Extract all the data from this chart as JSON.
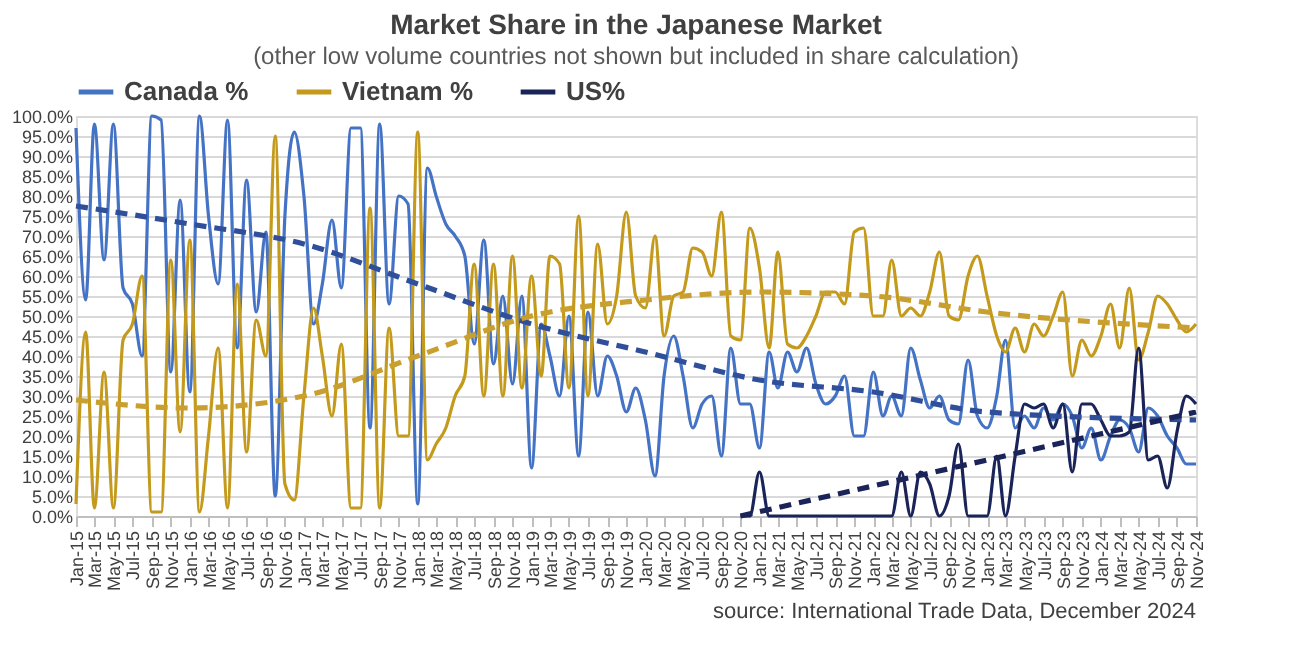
{
  "chart_data": {
    "type": "line",
    "title": "Market Share in the Japanese Market",
    "subtitle": "(other low volume countries not shown but included in share calculation)",
    "x": [
      "2015-01",
      "2015-02",
      "2015-03",
      "2015-04",
      "2015-05",
      "2015-06",
      "2015-07",
      "2015-08",
      "2015-09",
      "2015-10",
      "2015-11",
      "2015-12",
      "2016-01",
      "2016-02",
      "2016-03",
      "2016-04",
      "2016-05",
      "2016-06",
      "2016-07",
      "2016-08",
      "2016-09",
      "2016-10",
      "2016-11",
      "2016-12",
      "2017-01",
      "2017-02",
      "2017-03",
      "2017-04",
      "2017-05",
      "2017-06",
      "2017-07",
      "2017-08",
      "2017-09",
      "2017-10",
      "2017-11",
      "2017-12",
      "2018-01",
      "2018-02",
      "2018-03",
      "2018-04",
      "2018-05",
      "2018-06",
      "2018-07",
      "2018-08",
      "2018-09",
      "2018-10",
      "2018-11",
      "2018-12",
      "2019-01",
      "2019-02",
      "2019-03",
      "2019-04",
      "2019-05",
      "2019-06",
      "2019-07",
      "2019-08",
      "2019-09",
      "2019-10",
      "2019-11",
      "2019-12",
      "2020-01",
      "2020-02",
      "2020-03",
      "2020-04",
      "2020-05",
      "2020-06",
      "2020-07",
      "2020-08",
      "2020-09",
      "2020-10",
      "2020-11",
      "2020-12",
      "2021-01",
      "2021-02",
      "2021-03",
      "2021-04",
      "2021-05",
      "2021-06",
      "2021-07",
      "2021-08",
      "2021-09",
      "2021-10",
      "2021-11",
      "2021-12",
      "2022-01",
      "2022-02",
      "2022-03",
      "2022-04",
      "2022-05",
      "2022-06",
      "2022-07",
      "2022-08",
      "2022-09",
      "2022-10",
      "2022-11",
      "2022-12",
      "2023-01",
      "2023-02",
      "2023-03",
      "2023-04",
      "2023-05",
      "2023-06",
      "2023-07",
      "2023-08",
      "2023-09",
      "2023-10",
      "2023-11",
      "2023-12",
      "2024-01",
      "2024-02",
      "2024-03",
      "2024-04",
      "2024-05",
      "2024-06",
      "2024-07",
      "2024-08",
      "2024-09",
      "2024-10",
      "2024-11"
    ],
    "series": [
      {
        "name": "Canada %",
        "color": "#4472c4",
        "line_style": "solid",
        "values": [
          97,
          54,
          98,
          64,
          98,
          57,
          53,
          40,
          100,
          99,
          36,
          79,
          31,
          100,
          75,
          58,
          99,
          42,
          84,
          51,
          71,
          5,
          75,
          96,
          80,
          48,
          58,
          74,
          57,
          97,
          97,
          22,
          98,
          53,
          80,
          78,
          3,
          87,
          80,
          73,
          70,
          65,
          43,
          69,
          38,
          55,
          33,
          55,
          12,
          48,
          40,
          30,
          50,
          15,
          51,
          30,
          40,
          35,
          26,
          32,
          24,
          10,
          35,
          45,
          35,
          22,
          28,
          30,
          15,
          42,
          28,
          28,
          17,
          41,
          32,
          41,
          36,
          42,
          33,
          28,
          30,
          35,
          20,
          20,
          36,
          25,
          30,
          25,
          42,
          34,
          27,
          30,
          24,
          23,
          39,
          25,
          22,
          30,
          44,
          22,
          25,
          22,
          27,
          24,
          28,
          25,
          17,
          22,
          14,
          20,
          24,
          22,
          16,
          27,
          25,
          20,
          17,
          13,
          13
        ]
      },
      {
        "name": "Vietnam %",
        "color": "#c49a1c",
        "line_style": "solid",
        "values": [
          3,
          46,
          2,
          36,
          2,
          44,
          48,
          60,
          1,
          1,
          64,
          21,
          69,
          1,
          20,
          42,
          2,
          58,
          16,
          49,
          40,
          95,
          8,
          4,
          30,
          52,
          40,
          25,
          43,
          2,
          2,
          77,
          2,
          47,
          20,
          20,
          96,
          14,
          18,
          22,
          30,
          35,
          63,
          30,
          63,
          30,
          65,
          32,
          60,
          35,
          65,
          63,
          32,
          75,
          30,
          68,
          48,
          55,
          76,
          55,
          52,
          70,
          45,
          55,
          56,
          67,
          66,
          60,
          76,
          45,
          44,
          72,
          62,
          42,
          66,
          43,
          42,
          45,
          50,
          56,
          56,
          53,
          71,
          72,
          50,
          50,
          64,
          50,
          52,
          50,
          56,
          66,
          50,
          49,
          60,
          65,
          55,
          45,
          41,
          47,
          41,
          48,
          45,
          50,
          56,
          35,
          44,
          40,
          45,
          53,
          42,
          57,
          39,
          46,
          55,
          53,
          49,
          46,
          48
        ]
      },
      {
        "name": "US%",
        "color": "#1b2459",
        "line_style": "solid",
        "values": [
          null,
          null,
          null,
          null,
          null,
          null,
          null,
          null,
          null,
          null,
          null,
          null,
          null,
          null,
          null,
          null,
          null,
          null,
          null,
          null,
          null,
          null,
          null,
          null,
          null,
          null,
          null,
          null,
          null,
          null,
          null,
          null,
          null,
          null,
          null,
          null,
          null,
          null,
          null,
          null,
          null,
          null,
          null,
          null,
          null,
          null,
          null,
          null,
          null,
          null,
          null,
          null,
          null,
          null,
          null,
          null,
          null,
          null,
          null,
          null,
          null,
          null,
          null,
          null,
          null,
          null,
          null,
          null,
          null,
          null,
          0,
          0,
          11,
          0,
          0,
          0,
          0,
          0,
          0,
          0,
          0,
          0,
          0,
          0,
          0,
          0,
          0,
          11,
          0,
          11,
          8,
          0,
          5,
          18,
          0,
          0,
          0,
          15,
          0,
          15,
          28,
          27,
          28,
          22,
          28,
          11,
          28,
          28,
          24,
          20,
          20,
          21,
          42,
          14,
          15,
          7,
          21,
          30,
          28
        ]
      },
      {
        "type": "line",
        "color": "#2f4f9a",
        "line_style": "dashed",
        "x": [
          "2015-01",
          "2016-01",
          "2017-01",
          "2018-01",
          "2019-01",
          "2020-01",
          "2021-01",
          "2022-01",
          "2023-01",
          "2024-11"
        ],
        "values": [
          77.5,
          73,
          68,
          58,
          48,
          41,
          34,
          31,
          26,
          24
        ]
      },
      {
        "type": "line",
        "color": "#c9a030",
        "line_style": "dashed",
        "x": [
          "2015-01",
          "2016-01",
          "2017-01",
          "2018-01",
          "2019-01",
          "2020-01",
          "2021-01",
          "2022-01",
          "2023-01",
          "2024-11"
        ],
        "values": [
          29,
          27,
          30,
          40,
          50,
          54,
          56,
          55,
          51,
          47
        ]
      },
      {
        "type": "line",
        "color": "#1b2459",
        "line_style": "dashed",
        "x": [
          "2020-11",
          "2023-01",
          "2024-11"
        ],
        "values": [
          0,
          14,
          26
        ]
      }
    ],
    "xlim": [
      "2015-01",
      "2024-11"
    ],
    "xticks": [
      {
        "value": "2015-01",
        "label": "Jan-15"
      },
      {
        "value": "2015-03",
        "label": "Mar-15"
      },
      {
        "value": "2015-05",
        "label": "May-15"
      },
      {
        "value": "2015-07",
        "label": "Jul-15"
      },
      {
        "value": "2015-09",
        "label": "Sep-15"
      },
      {
        "value": "2015-11",
        "label": "Nov-15"
      },
      {
        "value": "2016-01",
        "label": "Jan-16"
      },
      {
        "value": "2016-03",
        "label": "Mar-16"
      },
      {
        "value": "2016-05",
        "label": "May-16"
      },
      {
        "value": "2016-07",
        "label": "Jul-16"
      },
      {
        "value": "2016-09",
        "label": "Sep-16"
      },
      {
        "value": "2016-11",
        "label": "Nov-16"
      },
      {
        "value": "2017-01",
        "label": "Jan-17"
      },
      {
        "value": "2017-03",
        "label": "Mar-17"
      },
      {
        "value": "2017-05",
        "label": "May-17"
      },
      {
        "value": "2017-07",
        "label": "Jul-17"
      },
      {
        "value": "2017-09",
        "label": "Sep-17"
      },
      {
        "value": "2017-11",
        "label": "Nov-17"
      },
      {
        "value": "2018-01",
        "label": "Jan-18"
      },
      {
        "value": "2018-03",
        "label": "Mar-18"
      },
      {
        "value": "2018-05",
        "label": "May-18"
      },
      {
        "value": "2018-07",
        "label": "Jul-18"
      },
      {
        "value": "2018-09",
        "label": "Sep-18"
      },
      {
        "value": "2018-11",
        "label": "Nov-18"
      },
      {
        "value": "2019-01",
        "label": "Jan-19"
      },
      {
        "value": "2019-03",
        "label": "Mar-19"
      },
      {
        "value": "2019-05",
        "label": "May-19"
      },
      {
        "value": "2019-07",
        "label": "Jul-19"
      },
      {
        "value": "2019-09",
        "label": "Sep-19"
      },
      {
        "value": "2019-11",
        "label": "Nov-19"
      },
      {
        "value": "2020-01",
        "label": "Jan-20"
      },
      {
        "value": "2020-03",
        "label": "Mar-20"
      },
      {
        "value": "2020-05",
        "label": "May-20"
      },
      {
        "value": "2020-07",
        "label": "Jul-20"
      },
      {
        "value": "2020-09",
        "label": "Sep-20"
      },
      {
        "value": "2020-11",
        "label": "Nov-20"
      },
      {
        "value": "2021-01",
        "label": "Jan-21"
      },
      {
        "value": "2021-03",
        "label": "Mar-21"
      },
      {
        "value": "2021-05",
        "label": "May-21"
      },
      {
        "value": "2021-07",
        "label": "Jul-21"
      },
      {
        "value": "2021-09",
        "label": "Sep-21"
      },
      {
        "value": "2021-11",
        "label": "Nov-21"
      },
      {
        "value": "2022-01",
        "label": "Jan-22"
      },
      {
        "value": "2022-03",
        "label": "Mar-22"
      },
      {
        "value": "2022-05",
        "label": "May-22"
      },
      {
        "value": "2022-07",
        "label": "Jul-22"
      },
      {
        "value": "2022-09",
        "label": "Sep-22"
      },
      {
        "value": "2022-11",
        "label": "Nov-22"
      },
      {
        "value": "2023-01",
        "label": "Jan-23"
      },
      {
        "value": "2023-03",
        "label": "Mar-23"
      },
      {
        "value": "2023-05",
        "label": "May-23"
      },
      {
        "value": "2023-07",
        "label": "Jul-23"
      },
      {
        "value": "2023-09",
        "label": "Sep-23"
      },
      {
        "value": "2023-11",
        "label": "Nov-23"
      },
      {
        "value": "2024-01",
        "label": "Jan-24"
      },
      {
        "value": "2024-03",
        "label": "Mar-24"
      },
      {
        "value": "2024-05",
        "label": "May-24"
      },
      {
        "value": "2024-07",
        "label": "Jul-24"
      },
      {
        "value": "2024-09",
        "label": "Sep-24"
      },
      {
        "value": "2024-11",
        "label": "Nov-24"
      }
    ],
    "ylim": [
      0,
      100
    ],
    "yticks": [
      {
        "value": 0,
        "label": "0.0%"
      },
      {
        "value": 5,
        "label": "5.0%"
      },
      {
        "value": 10,
        "label": "10.0%"
      },
      {
        "value": 15,
        "label": "15.0%"
      },
      {
        "value": 20,
        "label": "20.0%"
      },
      {
        "value": 25,
        "label": "25.0%"
      },
      {
        "value": 30,
        "label": "30.0%"
      },
      {
        "value": 35,
        "label": "35.0%"
      },
      {
        "value": 40,
        "label": "40.0%"
      },
      {
        "value": 45,
        "label": "45.0%"
      },
      {
        "value": 50,
        "label": "50.0%"
      },
      {
        "value": 55,
        "label": "55.0%"
      },
      {
        "value": 60,
        "label": "60.0%"
      },
      {
        "value": 65,
        "label": "65.0%"
      },
      {
        "value": 70,
        "label": "70.0%"
      },
      {
        "value": 75,
        "label": "75.0%"
      },
      {
        "value": 80,
        "label": "80.0%"
      },
      {
        "value": 85,
        "label": "85.0%"
      },
      {
        "value": 90,
        "label": "90.0%"
      },
      {
        "value": 95,
        "label": "95.0%"
      },
      {
        "value": 100,
        "label": "100.0%"
      }
    ],
    "grid": "y",
    "legend": "top",
    "marker": "none",
    "annotations": [
      "source: International Trade Data, December 2024"
    ]
  }
}
